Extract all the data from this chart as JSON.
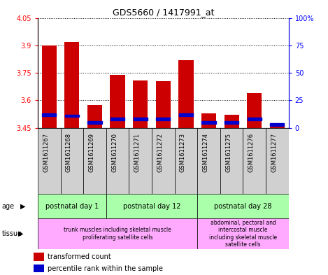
{
  "title": "GDS5660 / 1417991_at",
  "samples": [
    "GSM1611267",
    "GSM1611268",
    "GSM1611269",
    "GSM1611270",
    "GSM1611271",
    "GSM1611272",
    "GSM1611273",
    "GSM1611274",
    "GSM1611275",
    "GSM1611276",
    "GSM1611277"
  ],
  "transformed_count": [
    3.9,
    3.92,
    3.575,
    3.74,
    3.71,
    3.705,
    3.82,
    3.53,
    3.52,
    3.64,
    3.47
  ],
  "percentile_rank": [
    12,
    11,
    5,
    8,
    8,
    8,
    12,
    5,
    5,
    8,
    3
  ],
  "ymin": 3.45,
  "ymax": 4.05,
  "y_ticks": [
    3.45,
    3.6,
    3.75,
    3.9,
    4.05
  ],
  "y2min": 0,
  "y2max": 100,
  "y2_ticks": [
    0,
    25,
    50,
    75,
    100
  ],
  "y2_tick_labels": [
    "0",
    "25",
    "50",
    "75",
    "100%"
  ],
  "bar_color": "#cc0000",
  "blue_color": "#0000cc",
  "age_groups": [
    {
      "label": "postnatal day 1",
      "start": 0,
      "end": 3
    },
    {
      "label": "postnatal day 12",
      "start": 3,
      "end": 7
    },
    {
      "label": "postnatal day 28",
      "start": 7,
      "end": 11
    }
  ],
  "tissue_groups": [
    {
      "label": "trunk muscles including skeletal muscle\nproliferating satellite cells",
      "start": 0,
      "end": 7
    },
    {
      "label": "abdominal, pectoral and\nintercostal muscle\nincluding skeletal muscle\nsatellite cells",
      "start": 7,
      "end": 11
    }
  ],
  "age_color": "#aaffaa",
  "tissue_color": "#ffaaff",
  "xlabel_bg": "#d0d0d0",
  "legend_red": "transformed count",
  "legend_blue": "percentile rank within the sample"
}
